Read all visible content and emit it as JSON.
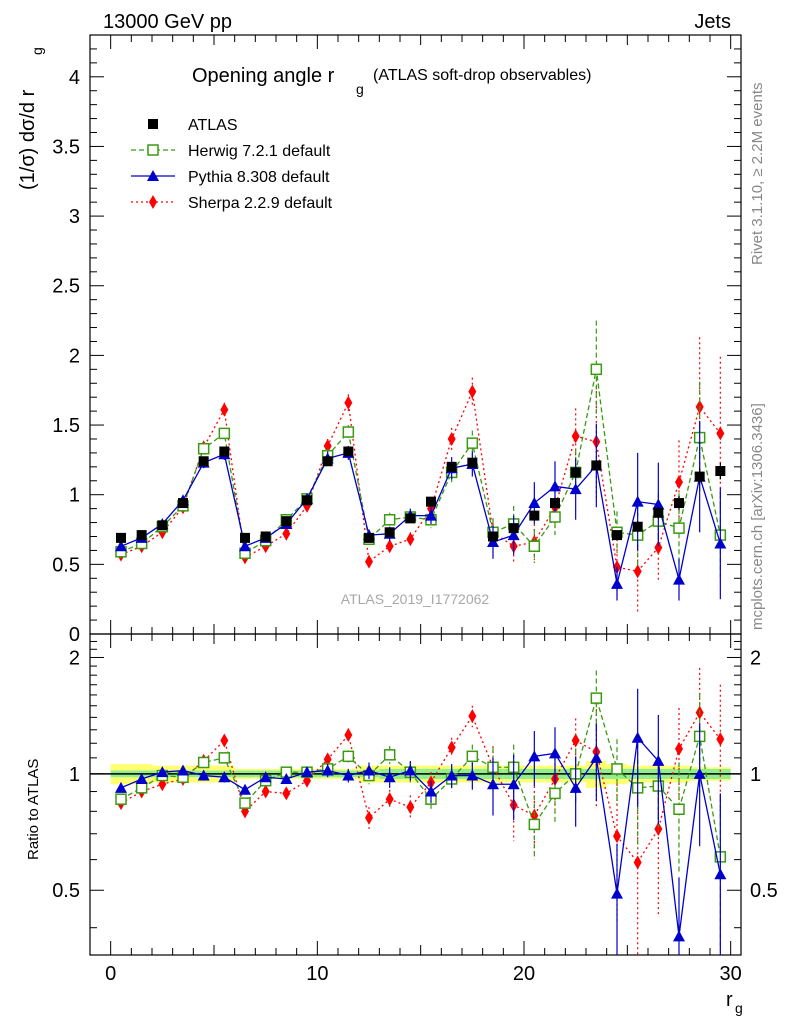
{
  "header": {
    "left": "13000 GeV pp",
    "right": "Jets"
  },
  "side_text": {
    "top": "Rivet 3.1.10, ≥ 2.2M events",
    "bottom": "mcplots.cern.ch [arXiv:1306.3436]"
  },
  "watermark": "ATLAS_2019_I1772062",
  "title": {
    "main": "Opening angle r",
    "sub": "g",
    "note": "(ATLAS soft-drop observables)"
  },
  "ylabel": {
    "text": "(1/σ) dσ/d r",
    "sub": "g"
  },
  "ratio_ylabel": "Ratio to ATLAS",
  "xlabel": {
    "text": "r",
    "sub": "g"
  },
  "upper_yticks": [
    "0",
    "0.5",
    "1",
    "1.5",
    "2",
    "2.5",
    "3",
    "3.5",
    "4"
  ],
  "ratio_yticks": [
    "0.5",
    "1",
    "2"
  ],
  "xticks": [
    "0",
    "10",
    "20",
    "30"
  ],
  "colors": {
    "atlas": "#000000",
    "herwig": "#3a9a12",
    "pythia": "#0000cc",
    "sherpa": "#ff0000",
    "band_inner": "#90ee90",
    "band_outer": "#ffff70"
  },
  "legend": [
    {
      "name": "ATLAS",
      "style": "data"
    },
    {
      "name": "Herwig 7.2.1 default",
      "style": "herwig"
    },
    {
      "name": "Pythia 8.308 default",
      "style": "pythia"
    },
    {
      "name": "Sherpa 2.2.9 default",
      "style": "sherpa"
    }
  ],
  "chart_data": {
    "type": "scatter",
    "x_bins": [
      "0-1",
      "1-2",
      "2-3",
      "3-4",
      "4-5",
      "5-6",
      "6-7",
      "7-8",
      "8-9",
      "9-10",
      "10-11",
      "11-12",
      "12-13",
      "13-14",
      "14-15",
      "15-16",
      "16-17",
      "17-18",
      "18-19",
      "19-20",
      "20-21",
      "21-22",
      "22-23",
      "23-24",
      "24-25",
      "25-26",
      "26-27",
      "27-28",
      "28-29",
      "29-30"
    ],
    "x": [
      0.5,
      1.5,
      2.5,
      3.5,
      4.5,
      5.5,
      6.5,
      7.5,
      8.5,
      9.5,
      10.5,
      11.5,
      12.5,
      13.5,
      14.5,
      15.5,
      16.5,
      17.5,
      18.5,
      19.5,
      20.5,
      21.5,
      22.5,
      23.5,
      24.5,
      25.5,
      26.5,
      27.5,
      28.5,
      29.5
    ],
    "xlim": [
      -1,
      30.5
    ],
    "ylim": [
      0,
      4.3
    ],
    "ratio_ylim": [
      0.34,
      2.3
    ],
    "ratio_log": true,
    "series": [
      {
        "name": "ATLAS",
        "values": [
          0.69,
          0.71,
          0.78,
          0.94,
          1.24,
          1.31,
          0.69,
          0.7,
          0.81,
          0.96,
          1.24,
          1.31,
          0.69,
          0.73,
          0.83,
          0.95,
          1.2,
          1.23,
          0.7,
          0.76,
          0.85,
          0.94,
          1.16,
          1.21,
          0.71,
          0.77,
          0.87,
          0.94,
          1.13,
          1.17
        ],
        "errors": [
          0.01,
          0.01,
          0.01,
          0.01,
          0.02,
          0.02,
          0.01,
          0.01,
          0.01,
          0.01,
          0.02,
          0.02,
          0.01,
          0.01,
          0.02,
          0.02,
          0.03,
          0.03,
          0.02,
          0.02,
          0.03,
          0.03,
          0.04,
          0.04,
          0.03,
          0.04,
          0.04,
          0.05,
          0.06,
          0.06
        ]
      },
      {
        "name": "Herwig 7.2.1 default",
        "values": [
          0.59,
          0.65,
          0.77,
          0.92,
          1.33,
          1.44,
          0.58,
          0.67,
          0.82,
          0.97,
          1.28,
          1.45,
          0.68,
          0.82,
          0.84,
          0.82,
          1.16,
          1.37,
          0.73,
          0.79,
          0.63,
          0.84,
          1.16,
          1.9,
          0.73,
          0.71,
          0.81,
          0.76,
          1.41,
          0.71
        ],
        "errors": [
          0.02,
          0.02,
          0.02,
          0.02,
          0.04,
          0.04,
          0.02,
          0.02,
          0.02,
          0.03,
          0.05,
          0.05,
          0.04,
          0.05,
          0.05,
          0.06,
          0.08,
          0.09,
          0.1,
          0.13,
          0.12,
          0.13,
          0.17,
          0.35,
          0.15,
          0.22,
          0.2,
          0.25,
          0.4,
          0.3
        ],
        "ratio": [
          0.86,
          0.92,
          0.99,
          0.98,
          1.07,
          1.1,
          0.84,
          0.96,
          1.01,
          1.01,
          1.03,
          1.11,
          0.99,
          1.12,
          1.01,
          0.86,
          0.97,
          1.11,
          1.04,
          1.04,
          0.74,
          0.89,
          1.0,
          1.57,
          1.03,
          0.92,
          0.93,
          0.81,
          1.25,
          0.61
        ],
        "ratio_errors": [
          0.02,
          0.02,
          0.02,
          0.02,
          0.03,
          0.03,
          0.02,
          0.02,
          0.02,
          0.03,
          0.04,
          0.04,
          0.05,
          0.06,
          0.06,
          0.06,
          0.07,
          0.08,
          0.13,
          0.15,
          0.14,
          0.14,
          0.16,
          0.28,
          0.2,
          0.28,
          0.22,
          0.26,
          0.36,
          0.26
        ]
      },
      {
        "name": "Pythia 8.308 default",
        "values": [
          0.63,
          0.69,
          0.79,
          0.96,
          1.23,
          1.29,
          0.63,
          0.69,
          0.79,
          0.97,
          1.26,
          1.3,
          0.71,
          0.72,
          0.85,
          0.85,
          1.19,
          1.22,
          0.66,
          0.71,
          0.94,
          1.06,
          1.04,
          1.21,
          0.36,
          0.95,
          0.93,
          0.39,
          1.13,
          0.65
        ],
        "errors": [
          0.02,
          0.02,
          0.02,
          0.02,
          0.04,
          0.04,
          0.02,
          0.02,
          0.02,
          0.03,
          0.05,
          0.05,
          0.04,
          0.05,
          0.05,
          0.06,
          0.08,
          0.09,
          0.12,
          0.14,
          0.15,
          0.18,
          0.22,
          0.3,
          0.12,
          0.35,
          0.3,
          0.15,
          0.4,
          0.4
        ],
        "ratio": [
          0.92,
          0.97,
          1.01,
          1.02,
          0.99,
          0.98,
          0.91,
          0.98,
          0.97,
          1.01,
          1.02,
          0.99,
          1.02,
          0.98,
          1.02,
          0.9,
          0.99,
          0.99,
          0.94,
          0.94,
          1.11,
          1.13,
          0.92,
          1.1,
          0.49,
          1.24,
          1.08,
          0.38,
          1.0,
          0.55
        ],
        "ratio_errors": [
          0.02,
          0.02,
          0.02,
          0.02,
          0.03,
          0.03,
          0.02,
          0.02,
          0.02,
          0.03,
          0.04,
          0.04,
          0.05,
          0.06,
          0.06,
          0.06,
          0.07,
          0.08,
          0.16,
          0.18,
          0.18,
          0.19,
          0.19,
          0.25,
          0.17,
          0.42,
          0.34,
          0.16,
          0.35,
          0.34
        ]
      },
      {
        "name": "Sherpa 2.2.9 default",
        "values": [
          0.57,
          0.63,
          0.73,
          0.91,
          1.34,
          1.61,
          0.55,
          0.63,
          0.72,
          0.92,
          1.35,
          1.66,
          0.52,
          0.63,
          0.68,
          0.9,
          1.4,
          1.74,
          0.73,
          0.63,
          0.66,
          0.91,
          1.42,
          1.38,
          0.48,
          0.45,
          0.62,
          1.09,
          1.63,
          1.44
        ],
        "errors": [
          0.02,
          0.02,
          0.02,
          0.02,
          0.04,
          0.05,
          0.02,
          0.02,
          0.02,
          0.03,
          0.05,
          0.06,
          0.04,
          0.04,
          0.05,
          0.06,
          0.08,
          0.1,
          0.1,
          0.12,
          0.13,
          0.15,
          0.2,
          0.4,
          0.2,
          0.3,
          0.25,
          0.3,
          0.5,
          0.55
        ],
        "ratio": [
          0.84,
          0.9,
          0.94,
          0.97,
          1.08,
          1.22,
          0.8,
          0.9,
          0.89,
          0.96,
          1.09,
          1.26,
          0.77,
          0.86,
          0.82,
          0.95,
          1.17,
          1.41,
          1.04,
          0.83,
          0.78,
          0.97,
          1.22,
          1.14,
          0.69,
          0.59,
          0.72,
          1.16,
          1.44,
          1.23
        ],
        "ratio_errors": [
          0.02,
          0.02,
          0.02,
          0.02,
          0.03,
          0.04,
          0.02,
          0.02,
          0.02,
          0.03,
          0.04,
          0.05,
          0.05,
          0.05,
          0.06,
          0.06,
          0.07,
          0.09,
          0.14,
          0.16,
          0.15,
          0.16,
          0.17,
          0.33,
          0.28,
          0.39,
          0.29,
          0.32,
          0.44,
          0.47
        ]
      }
    ],
    "ratio_band_inner": [
      0.02,
      0.02,
      0.02,
      0.02,
      0.02,
      0.02,
      0.02,
      0.02,
      0.02,
      0.02,
      0.02,
      0.02,
      0.02,
      0.03,
      0.03,
      0.03,
      0.03,
      0.03,
      0.03,
      0.03,
      0.03,
      0.03,
      0.03,
      0.03,
      0.03,
      0.03,
      0.03,
      0.03,
      0.03,
      0.03
    ],
    "ratio_band_outer": [
      0.06,
      0.06,
      0.05,
      0.05,
      0.05,
      0.05,
      0.03,
      0.03,
      0.03,
      0.03,
      0.03,
      0.03,
      0.05,
      0.05,
      0.05,
      0.05,
      0.05,
      0.05,
      0.05,
      0.05,
      0.05,
      0.05,
      0.05,
      0.08,
      0.06,
      0.05,
      0.05,
      0.05,
      0.04,
      0.04
    ]
  }
}
